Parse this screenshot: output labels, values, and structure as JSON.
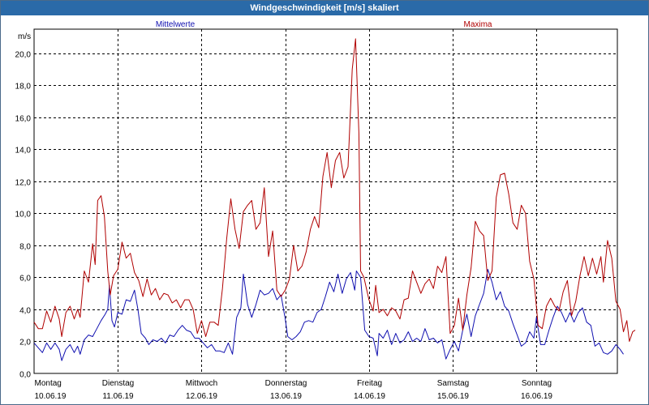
{
  "window": {
    "title": "Windgeschwindigkeit [m/s] skaliert"
  },
  "chart_data": {
    "type": "line",
    "title": "Windgeschwindigkeit [m/s] skaliert",
    "ylabel": "m/s",
    "xlabel": "",
    "ylim": [
      0,
      21.5
    ],
    "yticks": [
      0,
      2,
      4,
      6,
      8,
      10,
      12,
      14,
      16,
      18,
      20
    ],
    "ytick_labels": [
      "0,0",
      "2,0",
      "4,0",
      "6,0",
      "8,0",
      "10,0",
      "12,0",
      "14,0",
      "16,0",
      "18,0",
      "20,0"
    ],
    "xlim": [
      0,
      7.2
    ],
    "grid": true,
    "days": [
      {
        "weekday": "Montag",
        "date": "10.06.19"
      },
      {
        "weekday": "Dienstag",
        "date": "11.06.19"
      },
      {
        "weekday": "Mittwoch",
        "date": "12.06.19"
      },
      {
        "weekday": "Donnerstag",
        "date": "13.06.19"
      },
      {
        "weekday": "Freitag",
        "date": "14.06.19"
      },
      {
        "weekday": "Samstag",
        "date": "15.06.19"
      },
      {
        "weekday": "Sonntag",
        "date": "16.06.19"
      }
    ],
    "series": [
      {
        "name": "Mittelwerte",
        "color": "#1010b0",
        "points": [
          [
            0.0,
            1.9
          ],
          [
            0.05,
            1.6
          ],
          [
            0.1,
            1.3
          ],
          [
            0.15,
            1.9
          ],
          [
            0.2,
            1.5
          ],
          [
            0.25,
            1.9
          ],
          [
            0.3,
            1.5
          ],
          [
            0.33,
            0.8
          ],
          [
            0.38,
            1.5
          ],
          [
            0.43,
            1.8
          ],
          [
            0.48,
            1.3
          ],
          [
            0.52,
            1.7
          ],
          [
            0.55,
            1.2
          ],
          [
            0.6,
            2.1
          ],
          [
            0.65,
            2.4
          ],
          [
            0.7,
            2.3
          ],
          [
            0.75,
            2.8
          ],
          [
            0.8,
            3.3
          ],
          [
            0.85,
            3.7
          ],
          [
            0.88,
            4.0
          ],
          [
            0.9,
            5.5
          ],
          [
            0.93,
            3.3
          ],
          [
            0.96,
            2.9
          ],
          [
            1.0,
            3.8
          ],
          [
            1.05,
            3.7
          ],
          [
            1.1,
            4.6
          ],
          [
            1.15,
            4.5
          ],
          [
            1.2,
            5.2
          ],
          [
            1.24,
            4.0
          ],
          [
            1.28,
            2.5
          ],
          [
            1.33,
            2.2
          ],
          [
            1.37,
            1.8
          ],
          [
            1.42,
            2.1
          ],
          [
            1.47,
            2.0
          ],
          [
            1.52,
            2.2
          ],
          [
            1.57,
            1.9
          ],
          [
            1.62,
            2.4
          ],
          [
            1.67,
            2.3
          ],
          [
            1.72,
            2.7
          ],
          [
            1.77,
            3.0
          ],
          [
            1.82,
            2.7
          ],
          [
            1.87,
            2.6
          ],
          [
            1.92,
            2.2
          ],
          [
            1.97,
            2.2
          ],
          [
            2.02,
            1.9
          ],
          [
            2.07,
            1.6
          ],
          [
            2.12,
            1.8
          ],
          [
            2.17,
            1.4
          ],
          [
            2.22,
            1.4
          ],
          [
            2.27,
            1.3
          ],
          [
            2.32,
            1.9
          ],
          [
            2.37,
            1.2
          ],
          [
            2.42,
            3.5
          ],
          [
            2.47,
            4.1
          ],
          [
            2.5,
            6.2
          ],
          [
            2.55,
            4.3
          ],
          [
            2.6,
            3.5
          ],
          [
            2.65,
            4.3
          ],
          [
            2.7,
            5.2
          ],
          [
            2.75,
            4.9
          ],
          [
            2.8,
            5.0
          ],
          [
            2.85,
            5.3
          ],
          [
            2.9,
            4.6
          ],
          [
            2.95,
            4.9
          ],
          [
            3.0,
            3.4
          ],
          [
            3.03,
            2.3
          ],
          [
            3.08,
            2.1
          ],
          [
            3.13,
            2.3
          ],
          [
            3.18,
            2.6
          ],
          [
            3.23,
            3.2
          ],
          [
            3.28,
            3.3
          ],
          [
            3.33,
            3.2
          ],
          [
            3.38,
            3.8
          ],
          [
            3.43,
            4.0
          ],
          [
            3.48,
            4.8
          ],
          [
            3.53,
            5.7
          ],
          [
            3.58,
            5.1
          ],
          [
            3.63,
            6.2
          ],
          [
            3.68,
            5.0
          ],
          [
            3.73,
            5.9
          ],
          [
            3.78,
            6.3
          ],
          [
            3.83,
            5.2
          ],
          [
            3.85,
            6.4
          ],
          [
            3.9,
            6.0
          ],
          [
            3.95,
            2.7
          ],
          [
            4.0,
            2.3
          ],
          [
            4.05,
            2.2
          ],
          [
            4.1,
            1.1
          ],
          [
            4.12,
            2.5
          ],
          [
            4.17,
            2.2
          ],
          [
            4.22,
            2.7
          ],
          [
            4.27,
            1.8
          ],
          [
            4.32,
            2.5
          ],
          [
            4.37,
            1.9
          ],
          [
            4.42,
            2.1
          ],
          [
            4.47,
            2.6
          ],
          [
            4.52,
            2.0
          ],
          [
            4.57,
            2.2
          ],
          [
            4.62,
            2.0
          ],
          [
            4.67,
            2.8
          ],
          [
            4.72,
            2.1
          ],
          [
            4.77,
            2.2
          ],
          [
            4.82,
            1.9
          ],
          [
            4.87,
            2.1
          ],
          [
            4.92,
            0.9
          ],
          [
            4.97,
            1.5
          ],
          [
            5.02,
            2.0
          ],
          [
            5.07,
            1.4
          ],
          [
            5.12,
            2.7
          ],
          [
            5.17,
            3.7
          ],
          [
            5.22,
            2.3
          ],
          [
            5.27,
            3.6
          ],
          [
            5.32,
            4.3
          ],
          [
            5.37,
            5.0
          ],
          [
            5.42,
            6.5
          ],
          [
            5.47,
            5.7
          ],
          [
            5.52,
            4.6
          ],
          [
            5.57,
            5.1
          ],
          [
            5.62,
            4.2
          ],
          [
            5.67,
            3.9
          ],
          [
            5.72,
            3.1
          ],
          [
            5.77,
            2.4
          ],
          [
            5.82,
            1.7
          ],
          [
            5.87,
            1.9
          ],
          [
            5.92,
            2.6
          ],
          [
            5.97,
            2.2
          ],
          [
            6.0,
            3.5
          ],
          [
            6.05,
            1.8
          ],
          [
            6.1,
            1.8
          ],
          [
            6.15,
            2.7
          ],
          [
            6.2,
            3.5
          ],
          [
            6.25,
            4.2
          ],
          [
            6.3,
            3.8
          ],
          [
            6.35,
            3.2
          ],
          [
            6.4,
            3.8
          ],
          [
            6.45,
            3.2
          ],
          [
            6.5,
            3.8
          ],
          [
            6.55,
            4.1
          ],
          [
            6.6,
            3.2
          ],
          [
            6.65,
            3.0
          ],
          [
            6.7,
            1.7
          ],
          [
            6.75,
            1.9
          ],
          [
            6.8,
            1.3
          ],
          [
            6.85,
            1.2
          ],
          [
            6.9,
            1.4
          ],
          [
            6.95,
            1.8
          ],
          [
            7.0,
            1.5
          ],
          [
            7.04,
            1.2
          ]
        ]
      },
      {
        "name": "Maxima",
        "color": "#b00000",
        "points": [
          [
            0.0,
            3.2
          ],
          [
            0.05,
            2.8
          ],
          [
            0.1,
            2.8
          ],
          [
            0.15,
            3.9
          ],
          [
            0.2,
            3.2
          ],
          [
            0.25,
            4.2
          ],
          [
            0.3,
            3.4
          ],
          [
            0.33,
            2.3
          ],
          [
            0.38,
            3.8
          ],
          [
            0.43,
            4.2
          ],
          [
            0.48,
            3.4
          ],
          [
            0.52,
            4.0
          ],
          [
            0.55,
            3.5
          ],
          [
            0.6,
            6.4
          ],
          [
            0.65,
            5.7
          ],
          [
            0.7,
            8.1
          ],
          [
            0.73,
            6.8
          ],
          [
            0.76,
            10.8
          ],
          [
            0.8,
            11.1
          ],
          [
            0.84,
            9.8
          ],
          [
            0.88,
            6.4
          ],
          [
            0.91,
            4.9
          ],
          [
            0.95,
            6.1
          ],
          [
            1.0,
            6.5
          ],
          [
            1.05,
            8.2
          ],
          [
            1.1,
            7.2
          ],
          [
            1.15,
            7.5
          ],
          [
            1.2,
            6.3
          ],
          [
            1.25,
            5.8
          ],
          [
            1.3,
            4.8
          ],
          [
            1.35,
            5.9
          ],
          [
            1.4,
            4.9
          ],
          [
            1.45,
            5.3
          ],
          [
            1.5,
            4.6
          ],
          [
            1.55,
            5.0
          ],
          [
            1.6,
            4.9
          ],
          [
            1.65,
            4.4
          ],
          [
            1.7,
            4.6
          ],
          [
            1.75,
            4.1
          ],
          [
            1.8,
            4.6
          ],
          [
            1.85,
            4.6
          ],
          [
            1.9,
            4.0
          ],
          [
            1.95,
            2.5
          ],
          [
            2.0,
            3.3
          ],
          [
            2.05,
            2.3
          ],
          [
            2.1,
            3.2
          ],
          [
            2.15,
            3.2
          ],
          [
            2.2,
            3.0
          ],
          [
            2.25,
            5.3
          ],
          [
            2.3,
            8.4
          ],
          [
            2.35,
            10.9
          ],
          [
            2.4,
            9.0
          ],
          [
            2.45,
            7.8
          ],
          [
            2.5,
            10.1
          ],
          [
            2.55,
            10.5
          ],
          [
            2.6,
            10.8
          ],
          [
            2.65,
            9.0
          ],
          [
            2.7,
            9.4
          ],
          [
            2.75,
            11.6
          ],
          [
            2.8,
            7.3
          ],
          [
            2.85,
            8.9
          ],
          [
            2.9,
            5.2
          ],
          [
            2.95,
            4.8
          ],
          [
            3.0,
            5.2
          ],
          [
            3.05,
            5.9
          ],
          [
            3.1,
            8.0
          ],
          [
            3.15,
            6.4
          ],
          [
            3.2,
            6.7
          ],
          [
            3.25,
            7.6
          ],
          [
            3.3,
            9.0
          ],
          [
            3.35,
            9.8
          ],
          [
            3.4,
            9.1
          ],
          [
            3.45,
            12.3
          ],
          [
            3.5,
            13.8
          ],
          [
            3.55,
            11.6
          ],
          [
            3.6,
            13.3
          ],
          [
            3.65,
            13.8
          ],
          [
            3.7,
            12.2
          ],
          [
            3.75,
            12.9
          ],
          [
            3.8,
            19.0
          ],
          [
            3.84,
            20.9
          ],
          [
            3.88,
            15.0
          ],
          [
            3.9,
            6.4
          ],
          [
            3.94,
            6.0
          ],
          [
            4.0,
            4.6
          ],
          [
            4.05,
            3.9
          ],
          [
            4.08,
            5.5
          ],
          [
            4.12,
            3.8
          ],
          [
            4.17,
            4.0
          ],
          [
            4.22,
            3.6
          ],
          [
            4.27,
            4.1
          ],
          [
            4.32,
            3.9
          ],
          [
            4.37,
            3.4
          ],
          [
            4.42,
            4.6
          ],
          [
            4.47,
            4.7
          ],
          [
            4.52,
            6.4
          ],
          [
            4.57,
            5.7
          ],
          [
            4.62,
            5.0
          ],
          [
            4.67,
            5.6
          ],
          [
            4.72,
            5.9
          ],
          [
            4.77,
            5.3
          ],
          [
            4.82,
            6.7
          ],
          [
            4.87,
            6.3
          ],
          [
            4.92,
            7.3
          ],
          [
            4.97,
            2.5
          ],
          [
            5.02,
            3.0
          ],
          [
            5.07,
            4.7
          ],
          [
            5.12,
            2.7
          ],
          [
            5.17,
            4.9
          ],
          [
            5.22,
            6.6
          ],
          [
            5.27,
            9.5
          ],
          [
            5.32,
            8.9
          ],
          [
            5.37,
            8.6
          ],
          [
            5.42,
            5.8
          ],
          [
            5.47,
            6.4
          ],
          [
            5.52,
            11.0
          ],
          [
            5.57,
            12.4
          ],
          [
            5.62,
            12.5
          ],
          [
            5.67,
            11.2
          ],
          [
            5.72,
            9.4
          ],
          [
            5.77,
            9.0
          ],
          [
            5.82,
            10.5
          ],
          [
            5.87,
            10.0
          ],
          [
            5.92,
            7.0
          ],
          [
            5.97,
            5.9
          ],
          [
            6.02,
            3.0
          ],
          [
            6.07,
            2.8
          ],
          [
            6.12,
            4.2
          ],
          [
            6.17,
            4.7
          ],
          [
            6.22,
            4.2
          ],
          [
            6.27,
            3.9
          ],
          [
            6.32,
            5.1
          ],
          [
            6.37,
            5.8
          ],
          [
            6.42,
            3.6
          ],
          [
            6.47,
            4.5
          ],
          [
            6.52,
            6.1
          ],
          [
            6.57,
            7.3
          ],
          [
            6.62,
            6.1
          ],
          [
            6.67,
            7.2
          ],
          [
            6.72,
            6.2
          ],
          [
            6.77,
            7.3
          ],
          [
            6.8,
            5.7
          ],
          [
            6.85,
            8.3
          ],
          [
            6.9,
            7.2
          ],
          [
            6.95,
            4.5
          ],
          [
            7.0,
            4.0
          ],
          [
            7.04,
            2.6
          ],
          [
            7.08,
            3.3
          ],
          [
            7.11,
            2.0
          ],
          [
            7.15,
            2.6
          ],
          [
            7.18,
            2.7
          ]
        ]
      }
    ]
  }
}
